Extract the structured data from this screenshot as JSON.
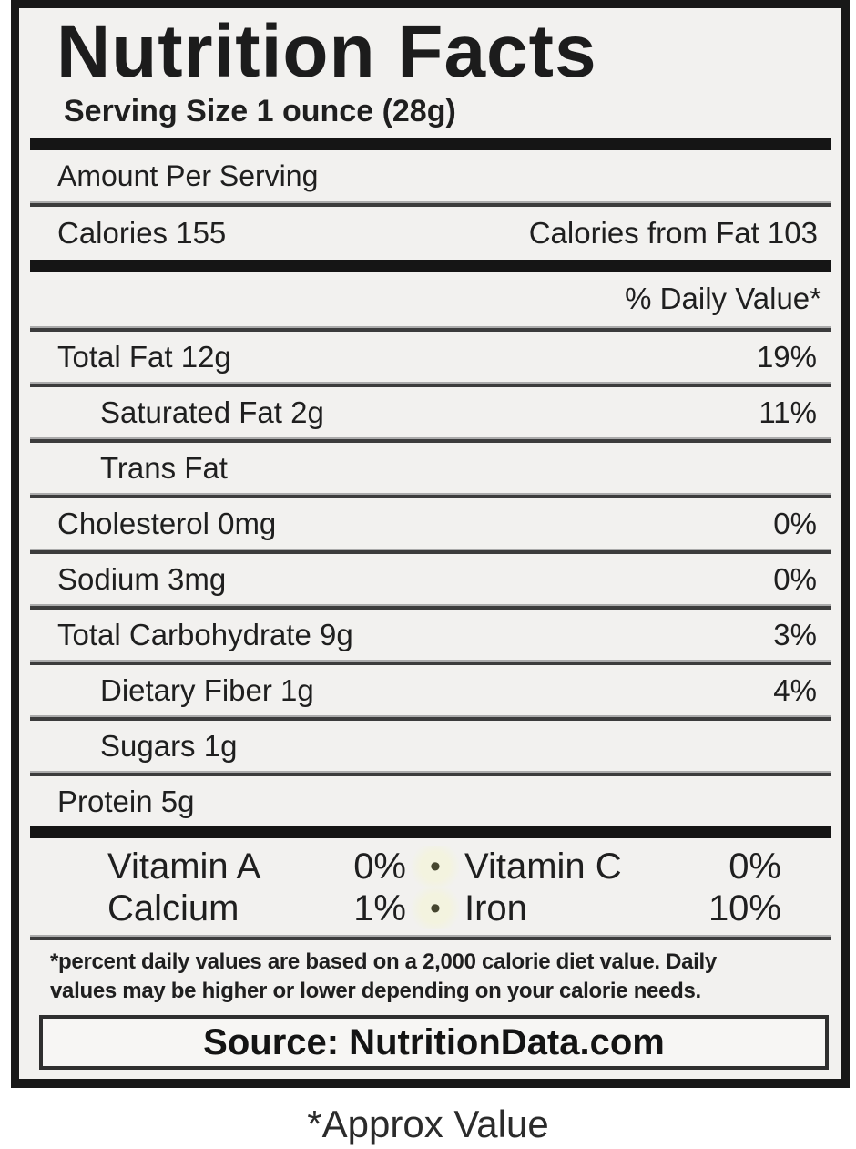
{
  "label": {
    "title": "Nutrition Facts",
    "serving_size": "Serving Size 1 ounce (28g)",
    "amount_per_serving": "Amount Per Serving",
    "calories": "Calories 155",
    "calories_from_fat": "Calories from Fat 103",
    "daily_value_header": "% Daily Value*",
    "rows": [
      {
        "name": "Total Fat 12g",
        "pct": "19%"
      },
      {
        "name": "Saturated Fat 2g",
        "pct": "11%"
      },
      {
        "name": "Trans Fat",
        "pct": ""
      },
      {
        "name": "Cholesterol 0mg",
        "pct": "0%"
      },
      {
        "name": "Sodium 3mg",
        "pct": "0%"
      },
      {
        "name": "Total Carbohydrate 9g",
        "pct": "3%"
      },
      {
        "name": "Dietary Fiber 1g",
        "pct": "4%"
      },
      {
        "name": "Sugars 1g",
        "pct": ""
      },
      {
        "name": "Protein 5g",
        "pct": ""
      }
    ],
    "vitamins": {
      "bullet": "•",
      "rows": [
        {
          "c1": "Vitamin A",
          "v1": "0%",
          "c2": "Vitamin C",
          "v2": "0%"
        },
        {
          "c1": "Calcium",
          "v1": "1%",
          "c2": "Iron",
          "v2": "10%"
        }
      ]
    },
    "footnote_line1": "*percent daily values are based on a 2,000 calorie diet value. Daily",
    "footnote_line2": "values may be higher or lower depending on your calorie needs.",
    "source": "Source: NutritionData.com"
  },
  "caption": "*Approx Value",
  "colors": {
    "text": "#1f1f1f",
    "label_background": "#f2f1ef",
    "page_background": "#ffffff",
    "border": "#181818",
    "divider_light": "#ababab",
    "divider_dark": "#3c3c3c",
    "bullet": "#45452f"
  }
}
